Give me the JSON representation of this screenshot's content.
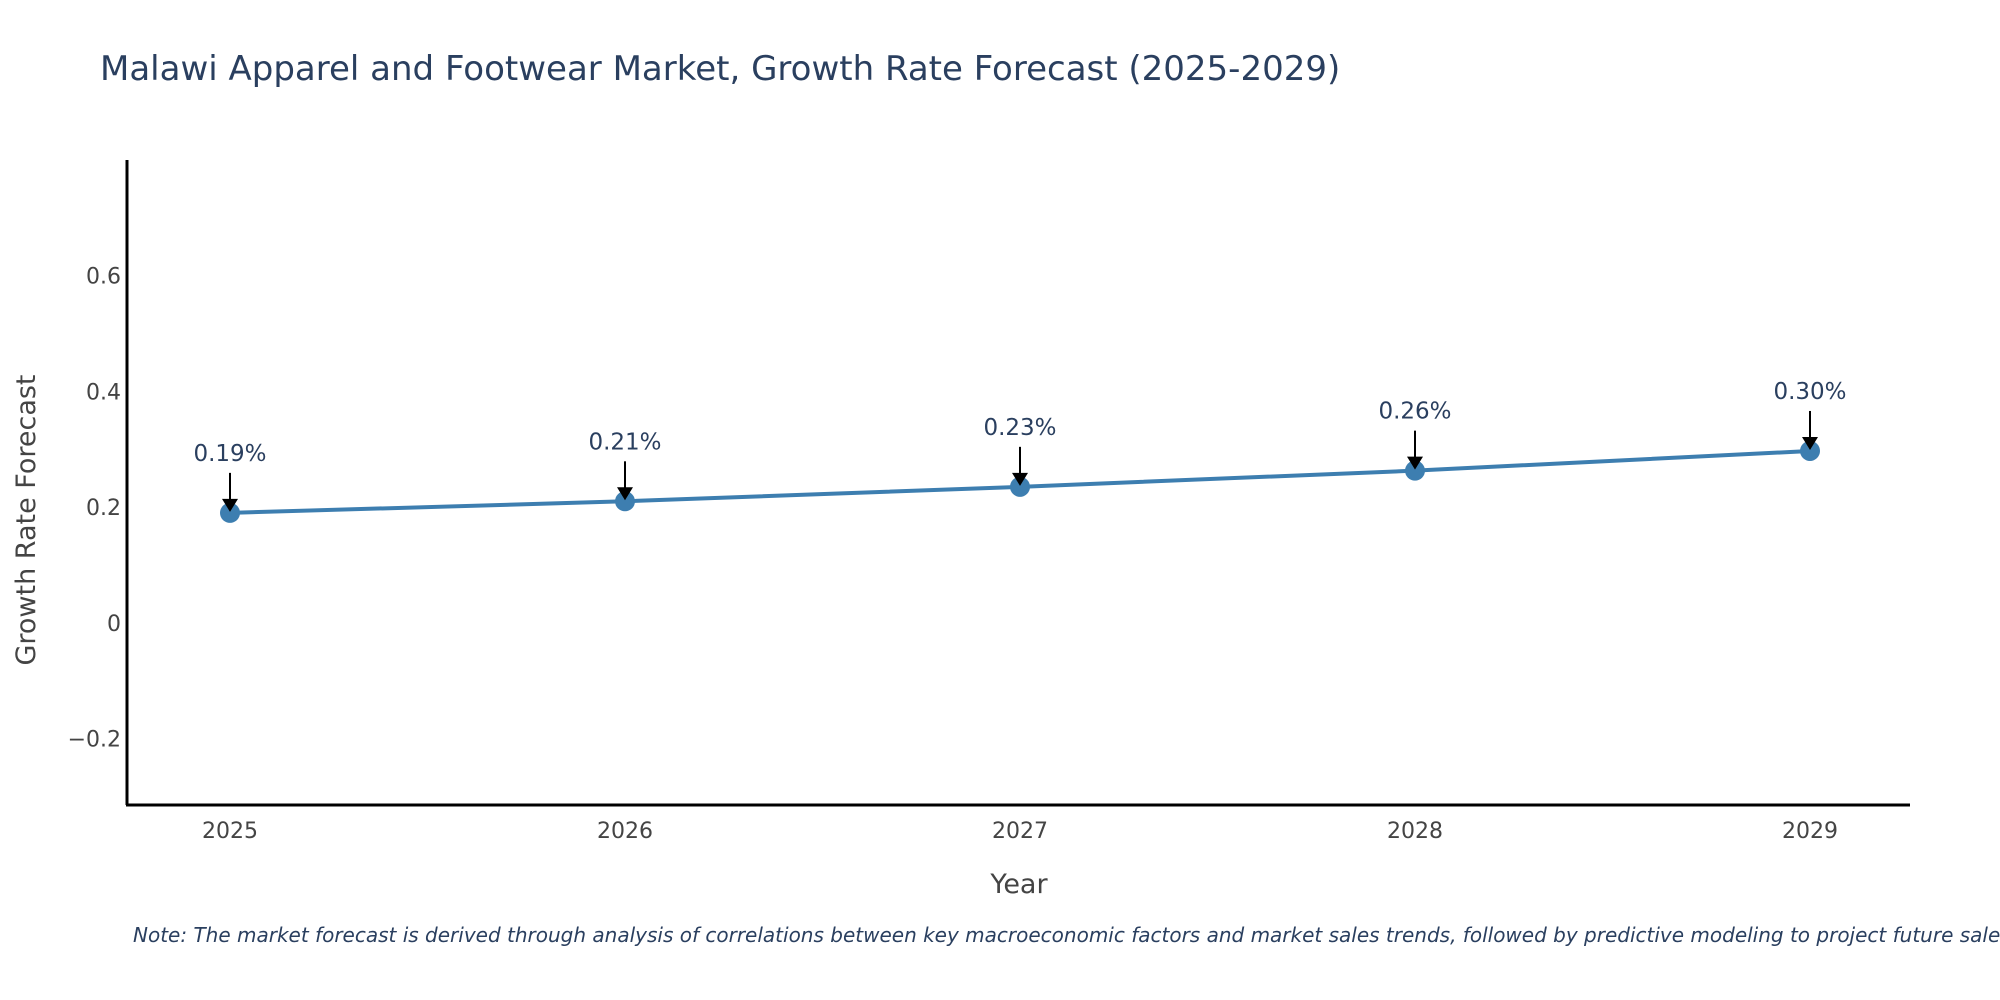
{
  "chart_data": {
    "type": "line",
    "title": "Malawi Apparel and Footwear Market, Growth Rate Forecast (2025-2029)",
    "xlabel": "Year",
    "ylabel": "Growth Rate Forecast",
    "categories": [
      "2025",
      "2026",
      "2027",
      "2028",
      "2029"
    ],
    "values": [
      0.19,
      0.21,
      0.235,
      0.263,
      0.297
    ],
    "data_labels": [
      "0.19%",
      "0.21%",
      "0.23%",
      "0.26%",
      "0.30%"
    ],
    "y_ticks": [
      -0.2,
      0,
      0.2,
      0.4,
      0.6
    ],
    "y_tick_labels": [
      "−0.2",
      "0",
      "0.2",
      "0.4",
      "0.6"
    ],
    "ylim": [
      -0.315,
      0.8
    ],
    "grid": false,
    "legend": "none",
    "line_color": "#3d7eb0",
    "note": "Note: The market forecast is derived through analysis of correlations between key macroeconomic factors and market sales trends, followed by predictive modeling to project future sales."
  }
}
